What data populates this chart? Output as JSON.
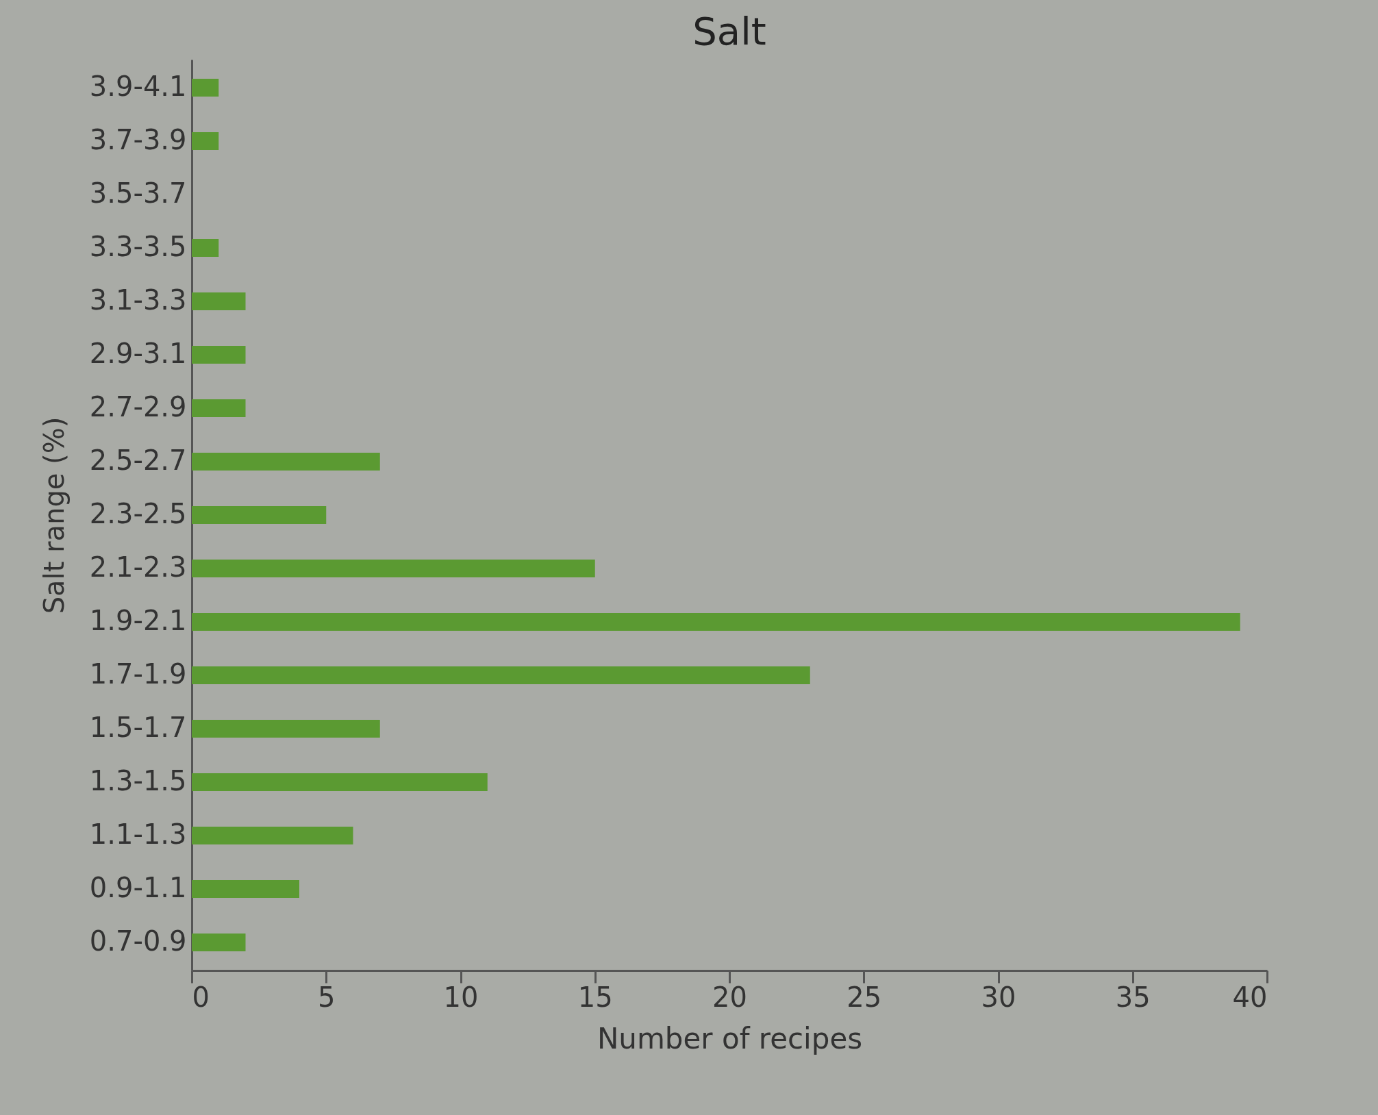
{
  "chart_data": {
    "type": "bar",
    "orientation": "horizontal",
    "title": "Salt",
    "xlabel": "Number of recipes",
    "ylabel": "Salt range (%)",
    "categories": [
      "3.9-4.1",
      "3.7-3.9",
      "3.5-3.7",
      "3.3-3.5",
      "3.1-3.3",
      "2.9-3.1",
      "2.7-2.9",
      "2.5-2.7",
      "2.3-2.5",
      "2.1-2.3",
      "1.9-2.1",
      "1.7-1.9",
      "1.5-1.7",
      "1.3-1.5",
      "1.1-1.3",
      "0.9-1.1",
      "0.7-0.9"
    ],
    "values": [
      1,
      1,
      0,
      1,
      2,
      2,
      2,
      7,
      5,
      15,
      39,
      23,
      7,
      11,
      6,
      4,
      2
    ],
    "color": "#5b9a32",
    "xlim": [
      0,
      40
    ],
    "xticks": [
      0,
      5,
      10,
      15,
      20,
      25,
      30,
      35,
      40
    ],
    "grid": false
  }
}
